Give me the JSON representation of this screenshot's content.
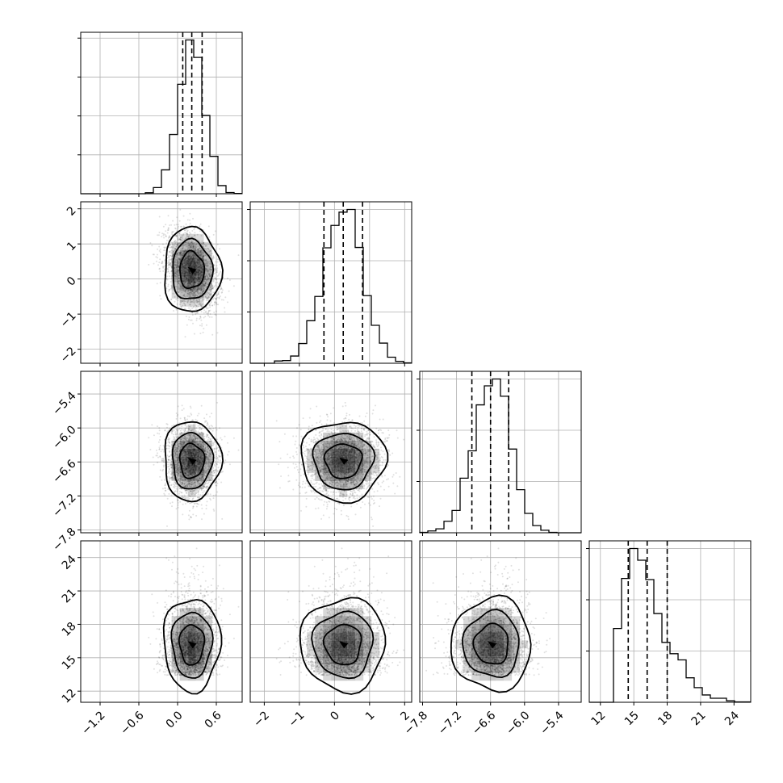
{
  "chart_data": {
    "type": "scatter",
    "title": "",
    "corner_plot": true,
    "parameters": [
      {
        "range": [
          -1.5,
          1.0
        ],
        "ticks": [
          -1.2,
          -0.6,
          0.0,
          0.6
        ],
        "tick_labels": [
          "−1.2",
          "−0.6",
          "0.0",
          "0.6"
        ],
        "hist_ticks": 4,
        "quantiles": [
          0.08,
          0.22,
          0.38
        ],
        "mean": 0.22,
        "sd": 0.2
      },
      {
        "range": [
          -2.4,
          2.2
        ],
        "ticks": [
          -2,
          -1,
          0,
          1,
          2
        ],
        "tick_labels": [
          "−2",
          "−1",
          "0",
          "1",
          "2"
        ],
        "hist_ticks": 3,
        "quantiles": [
          -0.3,
          0.25,
          0.8
        ],
        "mean": 0.25,
        "sd": 0.55
      },
      {
        "range": [
          -7.85,
          -5.0
        ],
        "ticks": [
          -7.8,
          -7.2,
          -6.6,
          -6.0,
          -5.4
        ],
        "tick_labels": [
          "−7.8",
          "−7.2",
          "−6.6",
          "−6.0",
          "−5.4"
        ],
        "hist_ticks": 3,
        "quantiles": [
          -6.93,
          -6.6,
          -6.28
        ],
        "mean": -6.58,
        "sd": 0.32
      },
      {
        "range": [
          11.0,
          25.5
        ],
        "ticks": [
          12,
          15,
          18,
          21,
          24
        ],
        "tick_labels": [
          "12",
          "15",
          "18",
          "21",
          "24"
        ],
        "hist_ticks": 3,
        "quantiles": [
          14.5,
          16.2,
          18.0
        ],
        "mean": 16.2,
        "sd": 1.9
      }
    ],
    "histogram_bins": 20,
    "xlabel": "",
    "ylabel": "",
    "grid": true,
    "legend": "none",
    "colors": {
      "line": "#000000",
      "grid": "#b0b0b0",
      "points": "#000000",
      "density": "#000000"
    }
  }
}
